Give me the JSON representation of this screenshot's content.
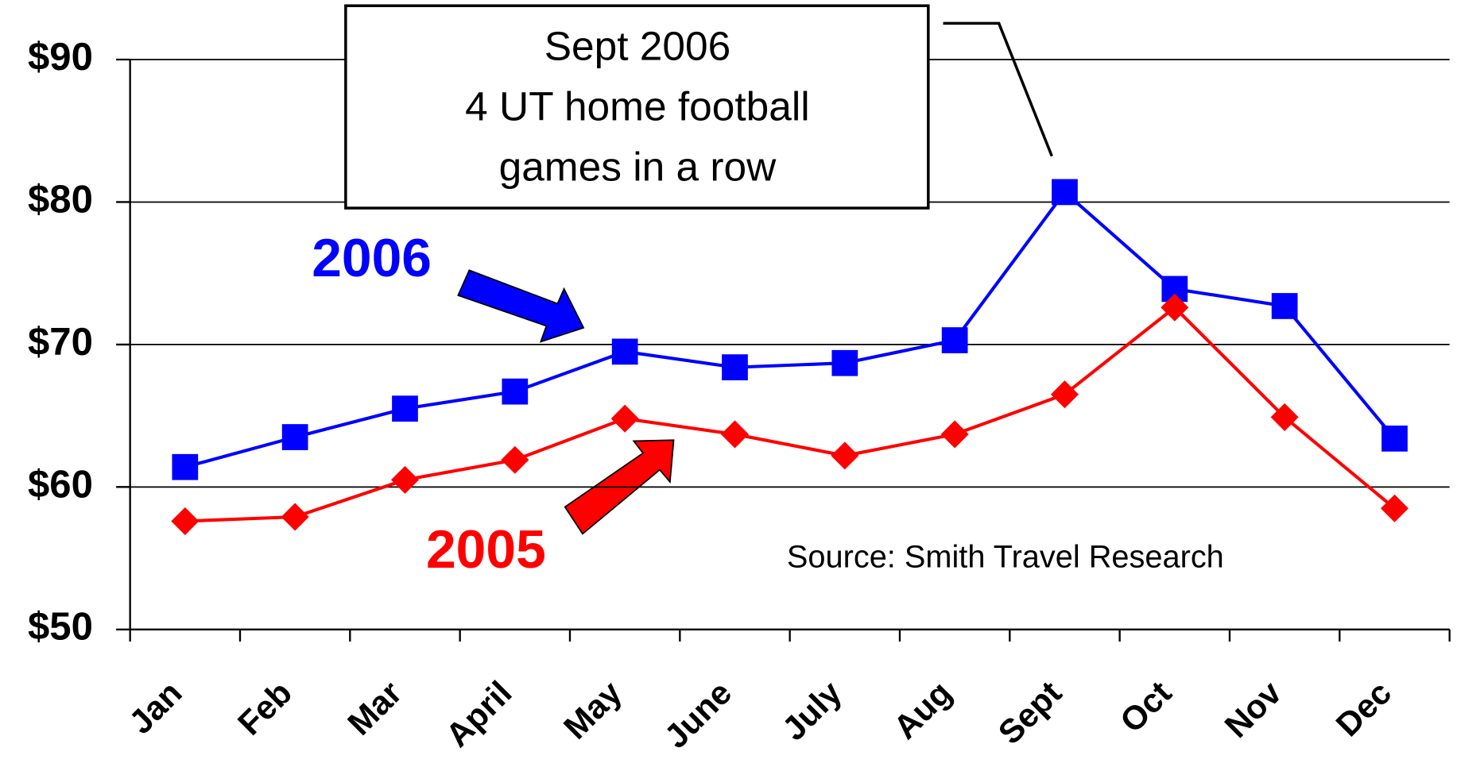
{
  "chart_data": {
    "type": "line",
    "categories": [
      "Jan",
      "Feb",
      "Mar",
      "April",
      "May",
      "June",
      "July",
      "Aug",
      "Sept",
      "Oct",
      "Nov",
      "Dec"
    ],
    "series": [
      {
        "name": "2006",
        "color": "#0000ff",
        "marker": "square",
        "values": [
          61.4,
          63.5,
          65.5,
          66.7,
          69.5,
          68.4,
          68.7,
          70.3,
          80.7,
          73.9,
          72.7,
          63.4
        ]
      },
      {
        "name": "2005",
        "color": "#ff0000",
        "marker": "diamond",
        "values": [
          57.6,
          57.9,
          60.5,
          61.9,
          64.8,
          63.7,
          62.2,
          63.7,
          66.5,
          72.6,
          64.9,
          58.5
        ]
      }
    ],
    "ylim": [
      50,
      90
    ],
    "yticks": [
      {
        "value": 50,
        "label": "$50"
      },
      {
        "value": 60,
        "label": "$60"
      },
      {
        "value": 70,
        "label": "$70"
      },
      {
        "value": 80,
        "label": "$80"
      },
      {
        "value": 90,
        "label": "$90"
      }
    ],
    "grid": true,
    "annotation": [
      "Sept 2006",
      "4 UT home football",
      "games in a row"
    ],
    "source": "Source: Smith Travel Research"
  }
}
